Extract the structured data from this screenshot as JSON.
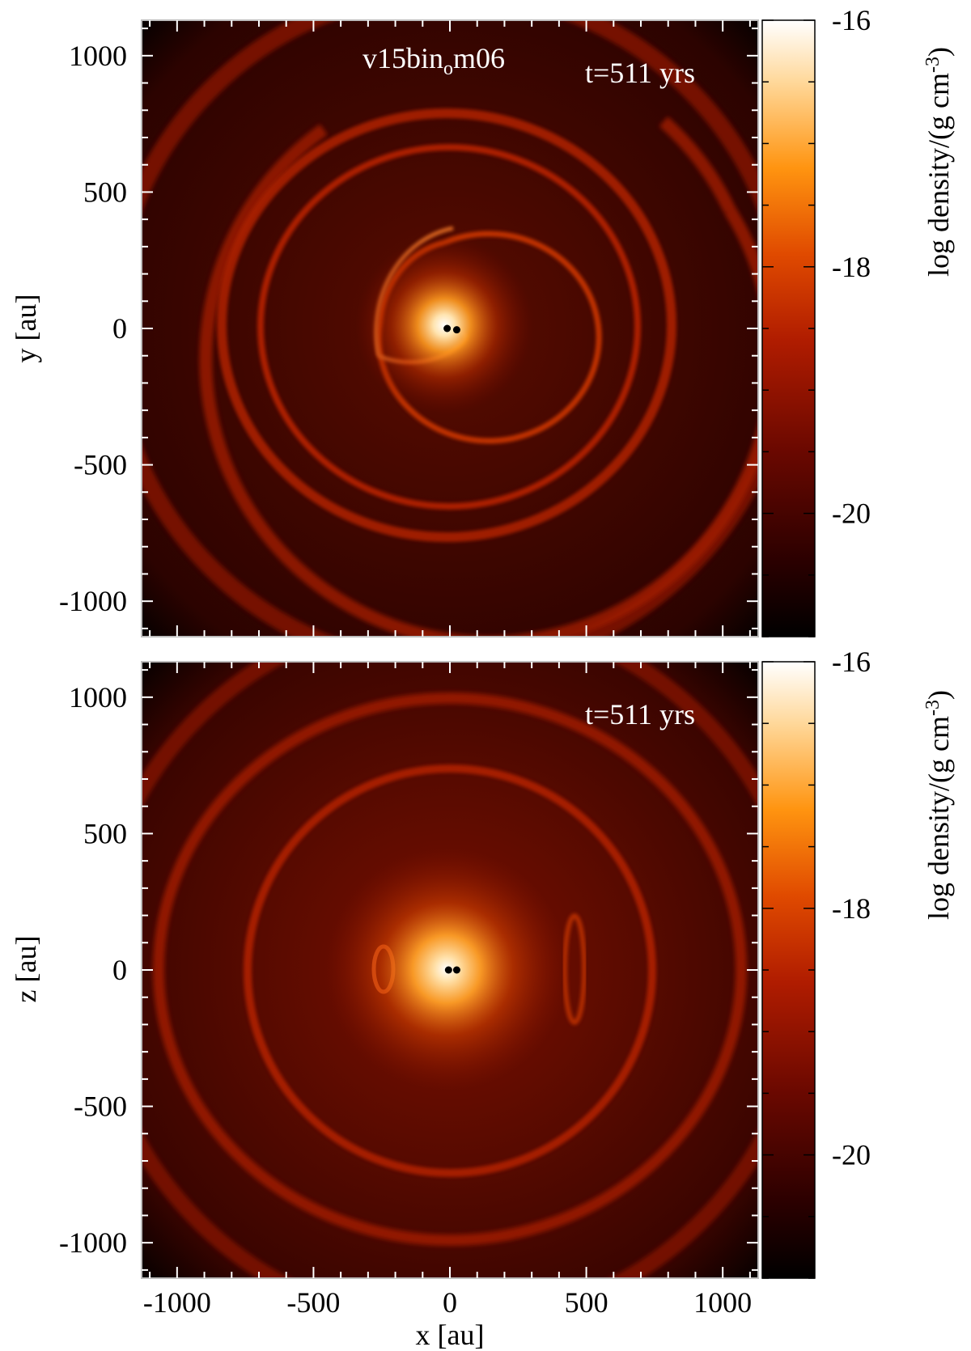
{
  "chart_data": [
    {
      "type": "heatmap",
      "panel": "top",
      "title": "v15bin",
      "title_subscript": "o",
      "title_suffix": "m06",
      "annotation": "t=511 yrs",
      "xlim": [
        -1130,
        1130
      ],
      "ylim": [
        -1130,
        1130
      ],
      "xlabel": "",
      "ylabel": "y [au]",
      "x_ticks": [],
      "y_ticks": [
        "-1000",
        "-500",
        "0",
        "500",
        "1000"
      ],
      "y_tick_values": [
        -1000,
        -500,
        0,
        500,
        1000
      ],
      "colorbar": {
        "label": "log density/(g cm",
        "label_sup": "-3",
        "label_end": ")",
        "range": [
          -21,
          -16
        ],
        "ticks": [
          "-16",
          "-18",
          "-20"
        ],
        "tick_values": [
          -16,
          -18,
          -20
        ]
      },
      "stars": [
        [
          -10,
          0
        ],
        [
          25,
          -5
        ]
      ]
    },
    {
      "type": "heatmap",
      "panel": "bottom",
      "annotation": "t=511 yrs",
      "xlim": [
        -1130,
        1130
      ],
      "ylim": [
        -1130,
        1130
      ],
      "xlabel": "x [au]",
      "ylabel": "z [au]",
      "x_ticks": [
        "-1000",
        "-500",
        "0",
        "500",
        "1000"
      ],
      "x_tick_values": [
        -1000,
        -500,
        0,
        500,
        1000
      ],
      "y_ticks": [
        "-1000",
        "-500",
        "0",
        "500",
        "1000"
      ],
      "y_tick_values": [
        -1000,
        -500,
        0,
        500,
        1000
      ],
      "colorbar": {
        "label": "log density/(g cm",
        "label_sup": "-3",
        "label_end": ")",
        "range": [
          -21,
          -16
        ],
        "ticks": [
          "-16",
          "-18",
          "-20"
        ],
        "tick_values": [
          -16,
          -18,
          -20
        ]
      },
      "stars": [
        [
          -5,
          0
        ],
        [
          25,
          0
        ]
      ]
    }
  ],
  "colors": {
    "colormap": [
      "#000000",
      "#3a0000",
      "#7a0a00",
      "#b81e00",
      "#e45a00",
      "#ff9a20",
      "#ffd89a",
      "#ffffff"
    ],
    "background": "#2a0400",
    "ring": "#b52100"
  }
}
